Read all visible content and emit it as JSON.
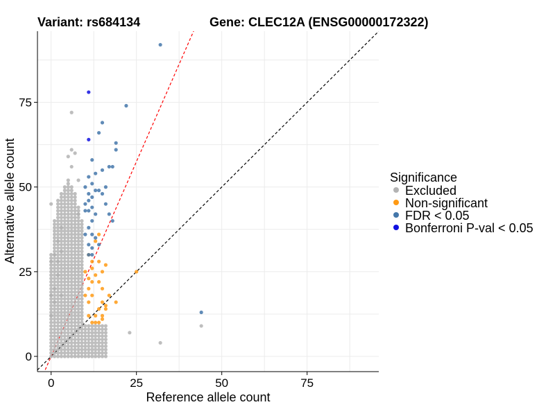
{
  "header": {
    "variant_label": "Variant: rs684134",
    "gene_label": "Gene: CLEC12A (ENSG00000172322)"
  },
  "legend": {
    "title": "Significance",
    "items": [
      {
        "label": "Excluded",
        "color": "#b3b3b3"
      },
      {
        "label": "Non-significant",
        "color": "#ff9a14"
      },
      {
        "label": "FDR < 0.05",
        "color": "#4477aa"
      },
      {
        "label": "Bonferroni P-val < 0.05",
        "color": "#1010e0"
      }
    ]
  },
  "chart_data": {
    "type": "scatter",
    "title": "Variant: rs684134    Gene: CLEC12A (ENSG00000172322)",
    "xlabel": "Reference allele count",
    "ylabel": "Alternative allele count",
    "xlim": [
      -4,
      96
    ],
    "ylim": [
      -4.5,
      96
    ],
    "x_ticks": [
      0,
      25,
      50,
      75
    ],
    "x_tick_labels": [
      "0",
      "25",
      "50",
      "75"
    ],
    "y_ticks": [
      0,
      25,
      50,
      75
    ],
    "y_tick_labels": [
      "0",
      "25",
      "50",
      "75"
    ],
    "grid": true,
    "reference_lines": [
      {
        "name": "identity",
        "slope": 1,
        "intercept": 0,
        "color": "#000000",
        "style": "dashed"
      },
      {
        "name": "ratio",
        "slope": 2.3,
        "intercept": 0,
        "color": "#ff0000",
        "style": "dashed"
      }
    ],
    "series": [
      {
        "name": "Excluded",
        "color": "#b3b3b3",
        "points": [
          [
            0,
            45
          ],
          [
            6,
            72
          ],
          [
            5,
            59
          ],
          [
            6,
            61
          ],
          [
            7,
            60
          ],
          [
            6,
            56
          ],
          [
            3,
            38
          ],
          [
            2,
            34
          ],
          [
            1,
            30
          ],
          [
            3,
            31
          ],
          [
            8,
            42
          ],
          [
            8,
            52
          ],
          [
            23,
            7
          ],
          [
            32,
            4
          ],
          [
            44,
            9
          ],
          [
            1,
            20
          ],
          [
            2,
            24
          ],
          [
            0,
            12
          ],
          [
            3,
            18
          ],
          [
            0,
            28
          ],
          [
            2,
            28
          ],
          [
            0,
            18
          ],
          [
            1,
            16
          ]
        ]
      },
      {
        "name": "Non-significant",
        "color": "#ff9a14",
        "points": [
          [
            25,
            25
          ],
          [
            14,
            36
          ],
          [
            13,
            34
          ],
          [
            15,
            20
          ],
          [
            17,
            18
          ],
          [
            19,
            16
          ],
          [
            16,
            15
          ],
          [
            14,
            14
          ],
          [
            13,
            12
          ],
          [
            15,
            11
          ],
          [
            11,
            16
          ],
          [
            12,
            18
          ],
          [
            10,
            25
          ],
          [
            12,
            28
          ],
          [
            13,
            24
          ],
          [
            14,
            22
          ],
          [
            15,
            25
          ],
          [
            16,
            27
          ],
          [
            11,
            20
          ],
          [
            12,
            22
          ],
          [
            10,
            18
          ],
          [
            11,
            12
          ],
          [
            12,
            10
          ],
          [
            13,
            10
          ],
          [
            14,
            10
          ],
          [
            15,
            12
          ],
          [
            16,
            14
          ],
          [
            11,
            30
          ],
          [
            12,
            26
          ],
          [
            14,
            28
          ],
          [
            11,
            23
          ],
          [
            15,
            16
          ]
        ]
      },
      {
        "name": "FDR < 0.05",
        "color": "#4477aa",
        "points": [
          [
            32,
            92
          ],
          [
            22,
            74
          ],
          [
            15,
            69
          ],
          [
            14,
            66
          ],
          [
            19,
            63
          ],
          [
            19,
            61
          ],
          [
            12,
            58
          ],
          [
            17,
            56
          ],
          [
            18,
            56
          ],
          [
            13,
            54
          ],
          [
            15,
            55
          ],
          [
            11,
            53
          ],
          [
            12,
            51
          ],
          [
            14,
            49
          ],
          [
            15,
            48
          ],
          [
            16,
            45
          ],
          [
            17,
            42
          ],
          [
            18,
            40
          ],
          [
            11,
            46
          ],
          [
            12,
            44
          ],
          [
            13,
            42
          ],
          [
            11,
            38
          ],
          [
            12,
            36
          ],
          [
            13,
            35
          ],
          [
            11,
            33
          ],
          [
            12,
            32
          ],
          [
            14,
            33
          ],
          [
            11,
            30
          ],
          [
            12,
            30
          ],
          [
            10,
            45
          ],
          [
            10,
            50
          ],
          [
            11,
            48
          ],
          [
            12,
            40
          ],
          [
            44,
            13
          ],
          [
            13,
            49
          ],
          [
            16,
            50
          ],
          [
            10,
            43
          ],
          [
            12,
            47
          ],
          [
            10,
            36
          ],
          [
            11,
            43
          ]
        ]
      },
      {
        "name": "Bonferroni P-val < 0.05",
        "color": "#1010e0",
        "points": [
          [
            11,
            78
          ],
          [
            11,
            64
          ]
        ]
      }
    ],
    "excluded_cluster": {
      "description": "dense grid of excluded counts",
      "x_range": [
        0,
        9
      ],
      "y_range_by_x": [
        [
          0,
          30
        ],
        [
          0,
          40
        ],
        [
          0,
          46
        ],
        [
          0,
          48
        ],
        [
          0,
          50
        ],
        [
          0,
          52
        ],
        [
          0,
          50
        ],
        [
          0,
          48
        ],
        [
          0,
          44
        ],
        [
          0,
          40
        ]
      ],
      "low_band": {
        "x_range": [
          10,
          16
        ],
        "y_range": [
          0,
          9
        ]
      }
    }
  }
}
